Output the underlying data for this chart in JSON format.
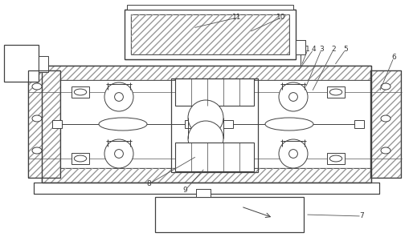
{
  "bg_color": "#ffffff",
  "line_color": "#404040",
  "label_color": "#333333",
  "figsize": [
    5.09,
    3.06
  ],
  "dpi": 100,
  "label_fs": 6.5,
  "lw": 0.7
}
